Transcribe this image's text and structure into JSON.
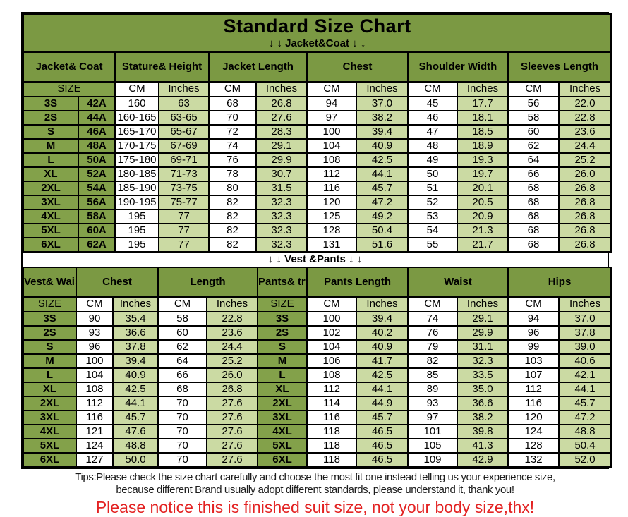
{
  "page": {
    "title": "Standard Size Chart",
    "jacket_section_label": "↓ ↓  Jacket&Coat ↓ ↓",
    "vest_section_label": "↓ ↓  Vest &Pants ↓ ↓",
    "tips_line1": "Tips:Please check the size chart carefully and choose the most fit one instead telling us your experience size,",
    "tips_line2": "because different Brand usually adopt different standards, please understand it, thank you!",
    "notice": "Please notice this is finished suit size, not your body size,thx!"
  },
  "colors": {
    "header_green": "#7b9943",
    "size_green": "#83a14a",
    "light_green": "#cbdaa3",
    "notice_red": "#e32222"
  },
  "chart_data": [
    {
      "type": "table",
      "title": "Standard Size Chart",
      "section": "Jacket&Coat",
      "header_groups": [
        "Jacket&\nCoat",
        "Stature&\nHeight",
        "Jacket\nLength",
        "Chest",
        "Shoulder\nWidth",
        "Sleeves\nLength"
      ],
      "units_row": [
        "SIZE",
        "CM",
        "Inches",
        "CM",
        "Inches",
        "CM",
        "Inches",
        "CM",
        "Inches",
        "CM",
        "Inches"
      ],
      "rows": [
        [
          "3S",
          "42A",
          "160",
          "63",
          "68",
          "26.8",
          "94",
          "37.0",
          "45",
          "17.7",
          "56",
          "22.0"
        ],
        [
          "2S",
          "44A",
          "160-165",
          "63-65",
          "70",
          "27.6",
          "97",
          "38.2",
          "46",
          "18.1",
          "58",
          "22.8"
        ],
        [
          "S",
          "46A",
          "165-170",
          "65-67",
          "72",
          "28.3",
          "100",
          "39.4",
          "47",
          "18.5",
          "60",
          "23.6"
        ],
        [
          "M",
          "48A",
          "170-175",
          "67-69",
          "74",
          "29.1",
          "104",
          "40.9",
          "48",
          "18.9",
          "62",
          "24.4"
        ],
        [
          "L",
          "50A",
          "175-180",
          "69-71",
          "76",
          "29.9",
          "108",
          "42.5",
          "49",
          "19.3",
          "64",
          "25.2"
        ],
        [
          "XL",
          "52A",
          "180-185",
          "71-73",
          "78",
          "30.7",
          "112",
          "44.1",
          "50",
          "19.7",
          "66",
          "26.0"
        ],
        [
          "2XL",
          "54A",
          "185-190",
          "73-75",
          "80",
          "31.5",
          "116",
          "45.7",
          "51",
          "20.1",
          "68",
          "26.8"
        ],
        [
          "3XL",
          "56A",
          "190-195",
          "75-77",
          "82",
          "32.3",
          "120",
          "47.2",
          "52",
          "20.5",
          "68",
          "26.8"
        ],
        [
          "4XL",
          "58A",
          "195",
          "77",
          "82",
          "32.3",
          "125",
          "49.2",
          "53",
          "20.9",
          "68",
          "26.8"
        ],
        [
          "5XL",
          "60A",
          "195",
          "77",
          "82",
          "32.3",
          "128",
          "50.4",
          "54",
          "21.3",
          "68",
          "26.8"
        ],
        [
          "6XL",
          "62A",
          "195",
          "77",
          "82",
          "32.3",
          "131",
          "51.6",
          "55",
          "21.7",
          "68",
          "26.8"
        ]
      ]
    },
    {
      "type": "table",
      "title": "Standard Size Chart",
      "section": "Vest &Pants",
      "header_groups": [
        "Vest&\nWaistcoat",
        "Chest",
        "Length",
        "Pants&\ntrousers",
        "Pants\nLength",
        "Waist",
        "Hips"
      ],
      "units_row": [
        "SIZE",
        "CM",
        "Inches",
        "CM",
        "Inches",
        "SIZE",
        "CM",
        "Inches",
        "CM",
        "Inches",
        "CM",
        "Inches"
      ],
      "rows": [
        [
          "3S",
          "90",
          "35.4",
          "58",
          "22.8",
          "3S",
          "100",
          "39.4",
          "74",
          "29.1",
          "94",
          "37.0"
        ],
        [
          "2S",
          "93",
          "36.6",
          "60",
          "23.6",
          "2S",
          "102",
          "40.2",
          "76",
          "29.9",
          "96",
          "37.8"
        ],
        [
          "S",
          "96",
          "37.8",
          "62",
          "24.4",
          "S",
          "104",
          "40.9",
          "79",
          "31.1",
          "99",
          "39.0"
        ],
        [
          "M",
          "100",
          "39.4",
          "64",
          "25.2",
          "M",
          "106",
          "41.7",
          "82",
          "32.3",
          "103",
          "40.6"
        ],
        [
          "L",
          "104",
          "40.9",
          "66",
          "26.0",
          "L",
          "108",
          "42.5",
          "85",
          "33.5",
          "107",
          "42.1"
        ],
        [
          "XL",
          "108",
          "42.5",
          "68",
          "26.8",
          "XL",
          "112",
          "44.1",
          "89",
          "35.0",
          "112",
          "44.1"
        ],
        [
          "2XL",
          "112",
          "44.1",
          "70",
          "27.6",
          "2XL",
          "114",
          "44.9",
          "93",
          "36.6",
          "116",
          "45.7"
        ],
        [
          "3XL",
          "116",
          "45.7",
          "70",
          "27.6",
          "3XL",
          "116",
          "45.7",
          "97",
          "38.2",
          "120",
          "47.2"
        ],
        [
          "4XL",
          "121",
          "47.6",
          "70",
          "27.6",
          "4XL",
          "118",
          "46.5",
          "101",
          "39.8",
          "124",
          "48.8"
        ],
        [
          "5XL",
          "124",
          "48.8",
          "70",
          "27.6",
          "5XL",
          "118",
          "46.5",
          "105",
          "41.3",
          "128",
          "50.4"
        ],
        [
          "6XL",
          "127",
          "50.0",
          "70",
          "27.6",
          "6XL",
          "118",
          "46.5",
          "109",
          "42.9",
          "132",
          "52.0"
        ]
      ]
    }
  ]
}
